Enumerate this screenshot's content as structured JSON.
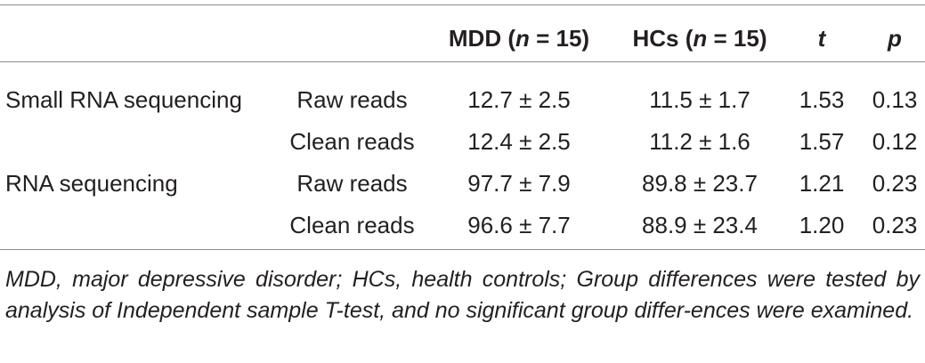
{
  "table": {
    "headers": {
      "category": "",
      "type": "",
      "mdd_prefix": "MDD (",
      "mdd_n": "n",
      "mdd_suffix": " = 15)",
      "hc_prefix": "HCs (",
      "hc_n": "n",
      "hc_suffix": " = 15)",
      "t": "t",
      "p": "p"
    },
    "rows": [
      {
        "category": "Small RNA sequencing",
        "type": "Raw reads",
        "mdd": "12.7 ± 2.5",
        "hc": "11.5 ± 1.7",
        "t": "1.53",
        "p": "0.13"
      },
      {
        "category": "",
        "type": "Clean reads",
        "mdd": "12.4 ± 2.5",
        "hc": "11.2 ± 1.6",
        "t": "1.57",
        "p": "0.12"
      },
      {
        "category": "RNA sequencing",
        "type": "Raw reads",
        "mdd": "97.7 ± 7.9",
        "hc": "89.8 ± 23.7",
        "t": "1.21",
        "p": "0.23"
      },
      {
        "category": "",
        "type": "Clean reads",
        "mdd": "96.6 ± 7.7",
        "hc": "88.9 ± 23.4",
        "t": "1.20",
        "p": "0.23"
      }
    ],
    "footnote": "MDD, major depressive disorder; HCs, health controls; Group differences were tested by analysis of Independent sample T-test, and no significant group differ-ences were examined."
  }
}
